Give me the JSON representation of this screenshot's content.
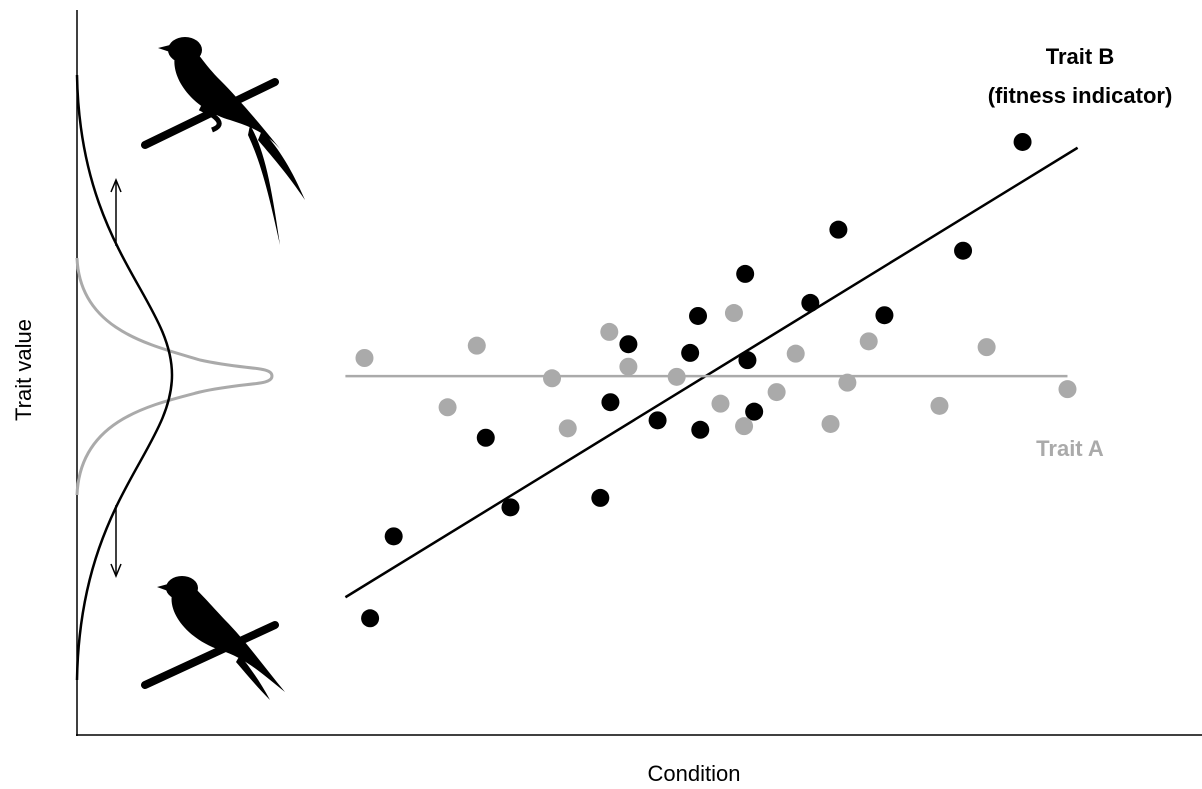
{
  "chart_data": {
    "type": "scatter",
    "x_label": "Condition",
    "y_label": "Trait value",
    "xlim": [
      0,
      100
    ],
    "ylim": [
      0,
      100
    ],
    "series": [
      {
        "name": "Trait B",
        "annotation": "(fitness indicator)",
        "color": "#000000",
        "x": [
          26.1,
          28.2,
          36.4,
          38.6,
          46.6,
          47.5,
          49.1,
          51.7,
          54.6,
          55.3,
          55.5,
          59.5,
          59.7,
          60.3,
          65.3,
          67.8,
          71.9,
          78.9,
          84.2
        ],
        "values": [
          16.1,
          27.4,
          41.0,
          31.4,
          32.7,
          45.9,
          53.9,
          43.4,
          52.7,
          57.8,
          42.1,
          63.6,
          51.7,
          44.6,
          59.6,
          69.7,
          57.9,
          66.8,
          81.8
        ],
        "fit": {
          "x": [
            23.9,
            89.1
          ],
          "y": [
            19.0,
            81.0
          ]
        }
      },
      {
        "name": "Trait A",
        "color": "#aaaaaa",
        "x": [
          25.6,
          33.0,
          35.6,
          42.3,
          43.7,
          47.4,
          49.1,
          53.4,
          57.3,
          58.5,
          59.4,
          62.3,
          64.0,
          67.1,
          68.6,
          70.5,
          76.8,
          81.0,
          88.2
        ],
        "values": [
          52.0,
          45.2,
          53.7,
          49.2,
          42.3,
          55.6,
          50.8,
          49.4,
          45.7,
          58.2,
          42.6,
          47.3,
          52.6,
          42.9,
          48.6,
          54.3,
          45.4,
          53.5,
          47.7
        ],
        "fit": {
          "x": [
            23.9,
            88.2
          ],
          "y": [
            49.5,
            49.5
          ]
        }
      }
    ]
  }
}
